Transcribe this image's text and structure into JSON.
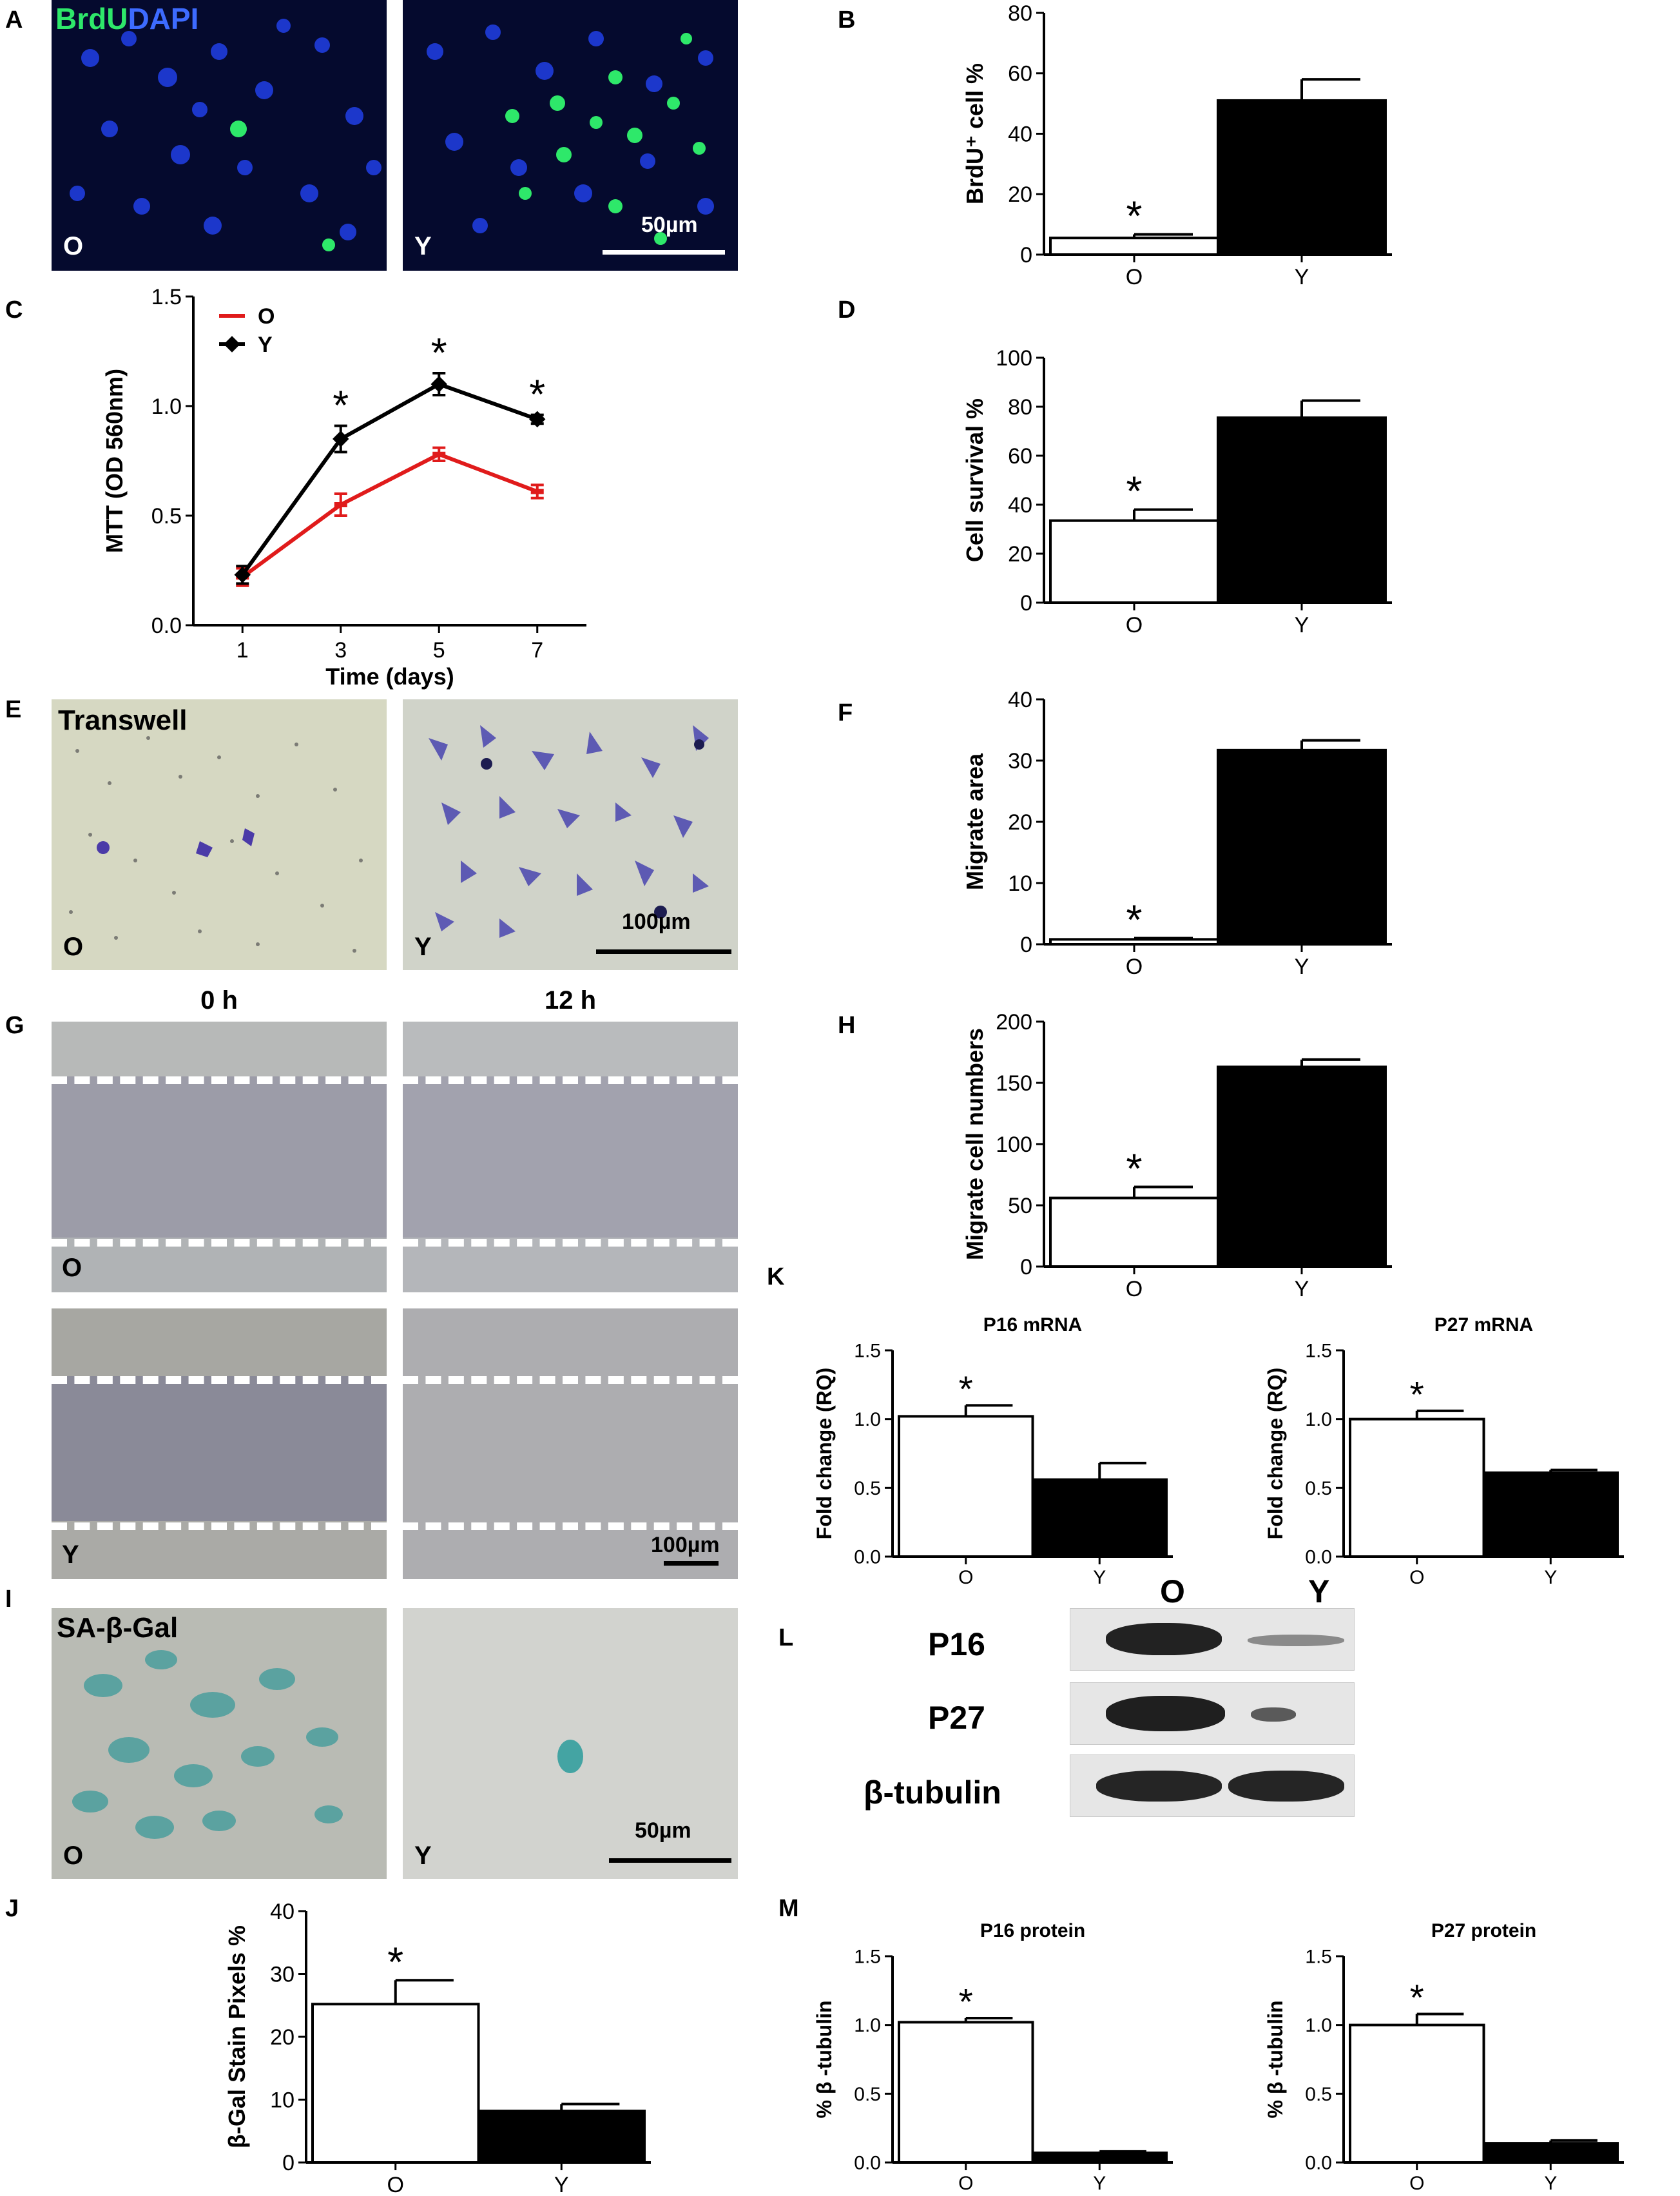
{
  "panels": {
    "A": {
      "letter": "A",
      "title_green": "BrdU",
      "title_blue": "DAPI",
      "left_label": "O",
      "right_label": "Y",
      "scale": "50µm"
    },
    "B": {
      "letter": "B"
    },
    "C": {
      "letter": "C"
    },
    "D": {
      "letter": "D"
    },
    "E": {
      "letter": "E",
      "title": "Transwell",
      "left_label": "O",
      "right_label": "Y",
      "scale": "100µm"
    },
    "F": {
      "letter": "F"
    },
    "G": {
      "letter": "G",
      "col_0h": "0 h",
      "col_12h": "12 h",
      "top_label": "O",
      "bottom_label": "Y",
      "scale": "100µm"
    },
    "H": {
      "letter": "H"
    },
    "I": {
      "letter": "I",
      "title": "SA-β-Gal",
      "left_label": "O",
      "right_label": "Y",
      "scale": "50µm"
    },
    "J": {
      "letter": "J"
    },
    "K": {
      "letter": "K"
    },
    "L": {
      "letter": "L",
      "col_O": "O",
      "col_Y": "Y",
      "row1": "P16",
      "row2": "P27",
      "row3": "β-tubulin"
    },
    "M": {
      "letter": "M"
    }
  },
  "colors": {
    "old": "#ffffff",
    "young": "#000000",
    "line_O": "#e01b1b",
    "line_Y": "#000000",
    "brdu": "#2ee86a",
    "dapi": "#1a4cff"
  },
  "chart_data": [
    {
      "id": "B",
      "type": "bar",
      "categories": [
        "O",
        "Y"
      ],
      "values": [
        5.5,
        51
      ],
      "errors": [
        1.2,
        7
      ],
      "ylabel": "BrdU⁺ cell %",
      "ylim": [
        0,
        80
      ],
      "yticks": [
        0,
        20,
        40,
        60,
        80
      ],
      "significance": [
        "*",
        ""
      ]
    },
    {
      "id": "C",
      "type": "line",
      "x": [
        1,
        3,
        5,
        7
      ],
      "xlabel": "Time (days)",
      "ylabel": "MTT (OD 560nm)",
      "ylim": [
        0.0,
        1.5
      ],
      "yticks": [
        "0.0",
        "0.5",
        "1.0",
        "1.5"
      ],
      "xticks": [
        "1",
        "3",
        "5",
        "7"
      ],
      "legend": "top-left",
      "series": [
        {
          "name": "O",
          "color": "#e01b1b",
          "values": [
            0.22,
            0.55,
            0.78,
            0.61
          ],
          "errors": [
            0.04,
            0.05,
            0.03,
            0.03
          ]
        },
        {
          "name": "Y",
          "color": "#000000",
          "values": [
            0.23,
            0.85,
            1.1,
            0.94
          ],
          "errors": [
            0.04,
            0.06,
            0.05,
            0.02
          ]
        }
      ],
      "significance_x": [
        3,
        5,
        7
      ]
    },
    {
      "id": "D",
      "type": "bar",
      "categories": [
        "O",
        "Y"
      ],
      "values": [
        33.5,
        75.5
      ],
      "errors": [
        4.5,
        7
      ],
      "ylabel": "Cell survival %",
      "ylim": [
        0,
        100
      ],
      "yticks": [
        0,
        20,
        40,
        60,
        80,
        100
      ],
      "significance": [
        "*",
        ""
      ]
    },
    {
      "id": "F",
      "type": "bar",
      "categories": [
        "O",
        "Y"
      ],
      "values": [
        0.8,
        31.7
      ],
      "errors": [
        0.2,
        1.6
      ],
      "ylabel": "Migrate area",
      "ylim": [
        0,
        40
      ],
      "yticks": [
        0,
        10,
        20,
        30,
        40
      ],
      "significance": [
        "*",
        ""
      ]
    },
    {
      "id": "H",
      "type": "bar",
      "categories": [
        "O",
        "Y"
      ],
      "values": [
        56,
        163
      ],
      "errors": [
        9,
        6
      ],
      "ylabel": "Migrate cell numbers",
      "ylim": [
        0,
        200
      ],
      "yticks": [
        0,
        50,
        100,
        150,
        200
      ],
      "significance": [
        "*",
        ""
      ]
    },
    {
      "id": "K1",
      "type": "bar",
      "title": "P16 mRNA",
      "categories": [
        "O",
        "Y"
      ],
      "values": [
        1.02,
        0.56
      ],
      "errors": [
        0.08,
        0.12
      ],
      "ylabel": "Fold change (RQ)",
      "ylim": [
        0,
        1.5
      ],
      "yticks": [
        "0.0",
        "0.5",
        "1.0",
        "1.5"
      ],
      "significance": [
        "*",
        ""
      ]
    },
    {
      "id": "K2",
      "type": "bar",
      "title": "P27 mRNA",
      "categories": [
        "O",
        "Y"
      ],
      "values": [
        1.0,
        0.61
      ],
      "errors": [
        0.06,
        0.02
      ],
      "ylabel": "Fold change (RQ)",
      "ylim": [
        0,
        1.5
      ],
      "yticks": [
        "0.0",
        "0.5",
        "1.0",
        "1.5"
      ],
      "significance": [
        "*",
        ""
      ]
    },
    {
      "id": "J",
      "type": "bar",
      "categories": [
        "O",
        "Y"
      ],
      "values": [
        25.2,
        8.2
      ],
      "errors": [
        3.8,
        1.1
      ],
      "ylabel": "β-Gal Stain Pixels %",
      "ylim": [
        0,
        40
      ],
      "yticks": [
        0,
        10,
        20,
        30,
        40
      ],
      "significance": [
        "*",
        ""
      ]
    },
    {
      "id": "M1",
      "type": "bar",
      "title": "P16 protein",
      "categories": [
        "O",
        "Y"
      ],
      "values": [
        1.02,
        0.07
      ],
      "errors": [
        0.03,
        0.01
      ],
      "ylabel": "% β -tubulin",
      "ylim": [
        0,
        1.5
      ],
      "yticks": [
        "0.0",
        "0.5",
        "1.0",
        "1.5"
      ],
      "significance": [
        "*",
        ""
      ]
    },
    {
      "id": "M2",
      "type": "bar",
      "title": "P27 protein",
      "categories": [
        "O",
        "Y"
      ],
      "values": [
        1.0,
        0.14
      ],
      "errors": [
        0.08,
        0.02
      ],
      "ylabel": "% β -tubulin",
      "ylim": [
        0,
        1.5
      ],
      "yticks": [
        "0.0",
        "0.5",
        "1.0",
        "1.5"
      ],
      "significance": [
        "*",
        ""
      ]
    }
  ]
}
